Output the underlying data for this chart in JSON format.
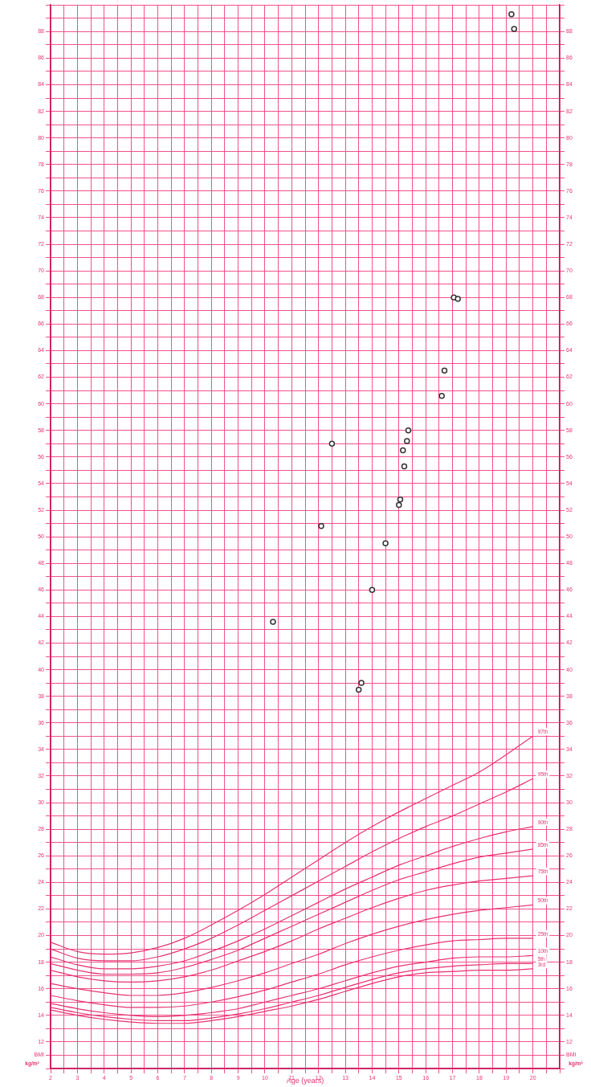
{
  "chart_data": {
    "type": "line",
    "xlabel": "Age (years)",
    "ylabel": "kg/m²",
    "y2label": "kg/m²",
    "xlim": [
      2,
      21
    ],
    "xticks": [
      2,
      {
        "value": 2.5,
        "label": null
      },
      3,
      {
        "value": 3.5,
        "label": null
      },
      4,
      {
        "value": 4.5,
        "label": null
      },
      5,
      {
        "value": 5.5,
        "label": null
      },
      6,
      {
        "value": 6.5,
        "label": null
      },
      7,
      {
        "value": 7.5,
        "label": null
      },
      8,
      {
        "value": 8.5,
        "label": null
      },
      9,
      {
        "value": 9.5,
        "label": null
      },
      10,
      {
        "value": 10.5,
        "label": null
      },
      11,
      {
        "value": 11.5,
        "label": null
      },
      12,
      {
        "value": 12.5,
        "label": null
      },
      13,
      {
        "value": 13.5,
        "label": null
      },
      14,
      {
        "value": 14.5,
        "label": null
      },
      15,
      {
        "value": 15.5,
        "label": null
      },
      16,
      {
        "value": 16.5,
        "label": null
      },
      17,
      {
        "value": 17.5,
        "label": null
      },
      18,
      {
        "value": 18.5,
        "label": null
      },
      19,
      {
        "value": 19.5,
        "label": null
      },
      20,
      {
        "value": 20.5,
        "label": null
      },
      {
        "value": 21,
        "label": null
      }
    ],
    "ylim": [
      10,
      90
    ],
    "yticks": [
      {
        "value": 10,
        "label": null
      },
      {
        "value": 11,
        "label": "BMI"
      },
      12,
      {
        "value": 13,
        "label": null
      },
      14,
      {
        "value": 15,
        "label": null
      },
      16,
      {
        "value": 17,
        "label": null
      },
      18,
      {
        "value": 19,
        "label": null
      },
      20,
      {
        "value": 21,
        "label": null
      },
      22,
      {
        "value": 23,
        "label": null
      },
      24,
      {
        "value": 25,
        "label": null
      },
      26,
      {
        "value": 27,
        "label": null
      },
      28,
      {
        "value": 29,
        "label": null
      },
      30,
      {
        "value": 31,
        "label": null
      },
      32,
      {
        "value": 33,
        "label": null
      },
      34,
      {
        "value": 35,
        "label": null
      },
      36,
      {
        "value": 37,
        "label": null
      },
      38,
      {
        "value": 39,
        "label": null
      },
      40,
      {
        "value": 41,
        "label": null
      },
      42,
      {
        "value": 43,
        "label": null
      },
      44,
      {
        "value": 45,
        "label": null
      },
      46,
      {
        "value": 47,
        "label": null
      },
      48,
      {
        "value": 49,
        "label": null
      },
      50,
      {
        "value": 51,
        "label": null
      },
      52,
      {
        "value": 53,
        "label": null
      },
      54,
      {
        "value": 55,
        "label": null
      },
      56,
      {
        "value": 57,
        "label": null
      },
      58,
      {
        "value": 59,
        "label": null
      },
      60,
      {
        "value": 61,
        "label": null
      },
      62,
      {
        "value": 63,
        "label": null
      },
      64,
      {
        "value": 65,
        "label": null
      },
      66,
      {
        "value": 67,
        "label": null
      },
      68,
      {
        "value": 69,
        "label": null
      },
      70,
      {
        "value": 71,
        "label": null
      },
      72,
      {
        "value": 73,
        "label": null
      },
      74,
      {
        "value": 75,
        "label": null
      },
      76,
      {
        "value": 77,
        "label": null
      },
      78,
      {
        "value": 79,
        "label": null
      },
      80,
      {
        "value": 81,
        "label": null
      },
      82,
      {
        "value": 83,
        "label": null
      },
      84,
      {
        "value": 85,
        "label": null
      },
      86,
      {
        "value": 87,
        "label": null
      },
      88,
      {
        "value": 89,
        "label": null
      },
      {
        "value": 90,
        "label": null
      }
    ],
    "y2lim": [
      10,
      90
    ],
    "y2ticks": [
      {
        "value": 10,
        "label": null
      },
      {
        "value": 11,
        "label": "BMI"
      },
      12,
      {
        "value": 13,
        "label": null
      },
      14,
      {
        "value": 15,
        "label": null
      },
      16,
      {
        "value": 17,
        "label": null
      },
      18,
      {
        "value": 19,
        "label": null
      },
      20,
      {
        "value": 21,
        "label": null
      },
      22,
      {
        "value": 23,
        "label": null
      },
      24,
      {
        "value": 25,
        "label": null
      },
      26,
      {
        "value": 27,
        "label": null
      },
      28,
      {
        "value": 29,
        "label": null
      },
      30,
      {
        "value": 31,
        "label": null
      },
      32,
      {
        "value": 33,
        "label": null
      },
      34,
      {
        "value": 35,
        "label": null
      },
      36,
      {
        "value": 37,
        "label": null
      },
      38,
      {
        "value": 39,
        "label": null
      },
      40,
      {
        "value": 41,
        "label": null
      },
      42,
      {
        "value": 43,
        "label": null
      },
      44,
      {
        "value": 45,
        "label": null
      },
      46,
      {
        "value": 47,
        "label": null
      },
      48,
      {
        "value": 49,
        "label": null
      },
      50,
      {
        "value": 51,
        "label": null
      },
      52,
      {
        "value": 53,
        "label": null
      },
      54,
      {
        "value": 55,
        "label": null
      },
      56,
      {
        "value": 57,
        "label": null
      },
      58,
      {
        "value": 59,
        "label": null
      },
      60,
      {
        "value": 61,
        "label": null
      },
      62,
      {
        "value": 63,
        "label": null
      },
      64,
      {
        "value": 65,
        "label": null
      },
      66,
      {
        "value": 67,
        "label": null
      },
      68,
      {
        "value": 69,
        "label": null
      },
      70,
      {
        "value": 71,
        "label": null
      },
      72,
      {
        "value": 73,
        "label": null
      },
      74,
      {
        "value": 75,
        "label": null
      },
      76,
      {
        "value": 77,
        "label": null
      },
      78,
      {
        "value": 79,
        "label": null
      },
      80,
      {
        "value": 81,
        "label": null
      },
      82,
      {
        "value": 83,
        "label": null
      },
      84,
      {
        "value": 85,
        "label": null
      },
      86,
      {
        "value": 87,
        "label": null
      },
      88,
      {
        "value": 89,
        "label": null
      },
      {
        "value": 90,
        "label": null
      }
    ],
    "grid": true,
    "legend": false,
    "marker": "none",
    "line_style": "solid",
    "x": [
      2,
      3,
      4,
      5,
      6,
      7,
      8,
      9,
      10,
      11,
      12,
      13,
      14,
      15,
      16,
      17,
      18,
      19,
      20
    ],
    "series": [
      {
        "name": "97th",
        "color": "#e8336f",
        "values": [
          19.5,
          18.8,
          18.6,
          18.7,
          19.1,
          19.8,
          20.8,
          21.9,
          23.1,
          24.4,
          25.7,
          27.0,
          28.2,
          29.3,
          30.3,
          31.3,
          32.3,
          33.6,
          35.0
        ]
      },
      {
        "name": "95th",
        "color": "#e8336f",
        "values": [
          19.0,
          18.3,
          18.1,
          18.1,
          18.4,
          19.0,
          19.8,
          20.8,
          21.9,
          23.0,
          24.1,
          25.2,
          26.3,
          27.3,
          28.2,
          29.0,
          29.9,
          30.8,
          31.8
        ]
      },
      {
        "name": "90th",
        "color": "#e8336f",
        "values": [
          18.4,
          17.8,
          17.5,
          17.5,
          17.7,
          18.1,
          18.8,
          19.6,
          20.5,
          21.5,
          22.5,
          23.5,
          24.4,
          25.3,
          26.0,
          26.7,
          27.3,
          27.8,
          28.2
        ]
      },
      {
        "name": "85th",
        "color": "#e8336f",
        "values": [
          17.9,
          17.4,
          17.1,
          17.1,
          17.2,
          17.6,
          18.2,
          18.9,
          19.8,
          20.7,
          21.6,
          22.5,
          23.4,
          24.2,
          24.8,
          25.4,
          25.9,
          26.2,
          26.5
        ]
      },
      {
        "name": "75th",
        "color": "#e8336f",
        "values": [
          17.4,
          16.9,
          16.6,
          16.5,
          16.6,
          16.9,
          17.4,
          18.1,
          18.8,
          19.6,
          20.5,
          21.3,
          22.1,
          22.8,
          23.4,
          23.8,
          24.1,
          24.3,
          24.5
        ]
      },
      {
        "name": "50th",
        "color": "#e8336f",
        "values": [
          16.4,
          16.0,
          15.7,
          15.5,
          15.5,
          15.7,
          16.1,
          16.6,
          17.2,
          17.9,
          18.6,
          19.4,
          20.1,
          20.7,
          21.2,
          21.6,
          21.9,
          22.1,
          22.3
        ]
      },
      {
        "name": "25th",
        "color": "#e8336f",
        "values": [
          15.5,
          15.1,
          14.8,
          14.6,
          14.6,
          14.7,
          15.0,
          15.4,
          15.9,
          16.5,
          17.1,
          17.8,
          18.4,
          18.9,
          19.3,
          19.6,
          19.7,
          19.8,
          19.8
        ]
      },
      {
        "name": "10th",
        "color": "#e8336f",
        "values": [
          14.9,
          14.5,
          14.2,
          14.0,
          13.9,
          14.0,
          14.2,
          14.5,
          15.0,
          15.5,
          16.0,
          16.6,
          17.2,
          17.7,
          18.0,
          18.3,
          18.4,
          18.4,
          18.5
        ]
      },
      {
        "name": "5th",
        "color": "#e8336f",
        "values": [
          14.6,
          14.2,
          13.9,
          13.7,
          13.6,
          13.6,
          13.8,
          14.1,
          14.5,
          15.0,
          15.5,
          16.1,
          16.7,
          17.2,
          17.5,
          17.7,
          17.8,
          17.9,
          17.9
        ]
      },
      {
        "name": "3rd",
        "color": "#e8336f",
        "values": [
          14.4,
          14.0,
          13.7,
          13.5,
          13.4,
          13.4,
          13.6,
          13.9,
          14.3,
          14.7,
          15.2,
          15.8,
          16.4,
          16.9,
          17.2,
          17.3,
          17.4,
          17.4,
          17.5
        ]
      },
      {
        "type": "scatter",
        "marker": "circle",
        "color": "#333333",
        "x": [
          10.3,
          12.1,
          12.5,
          13.5,
          13.6,
          14.0,
          14.5,
          15.0,
          15.05,
          15.15,
          15.2,
          15.3,
          15.35,
          16.6,
          16.7,
          17.05,
          17.2,
          19.2,
          19.3
        ],
        "values": [
          43.6,
          50.8,
          57.0,
          38.5,
          39.0,
          46.0,
          49.5,
          52.4,
          52.8,
          56.5,
          55.3,
          57.2,
          58.0,
          60.6,
          62.5,
          68.0,
          67.9,
          89.3,
          88.2
        ]
      }
    ]
  }
}
